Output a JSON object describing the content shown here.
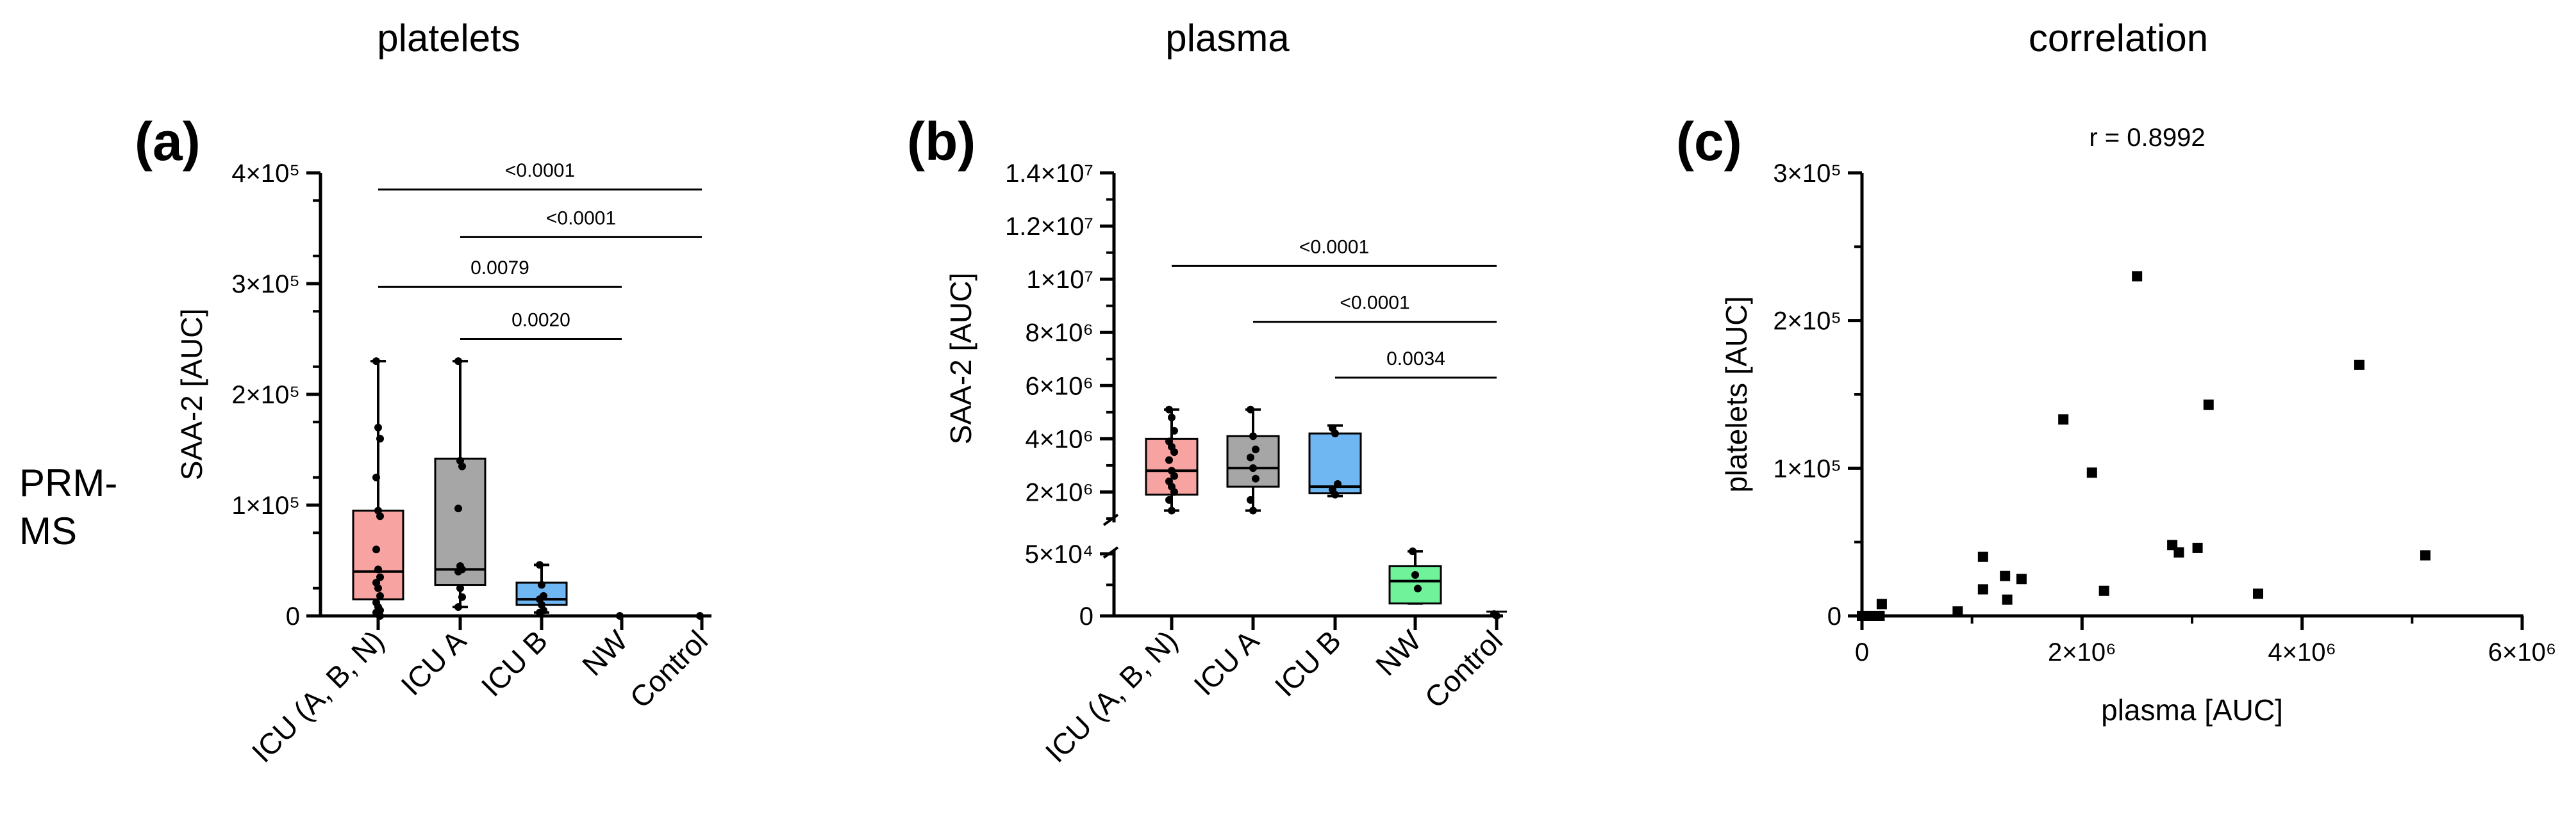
{
  "row_label": [
    "PRM-",
    "MS"
  ],
  "panels": [
    {
      "letter": "(a)",
      "title": "platelets"
    },
    {
      "letter": "(b)",
      "title": "plasma"
    },
    {
      "letter": "(c)",
      "title": "correlation"
    }
  ],
  "chart_data": [
    {
      "type": "box",
      "title": "platelets",
      "panel": "(a)",
      "xlabel": "",
      "ylabel": "SAA-2 [AUC]",
      "ylim": [
        0,
        400000
      ],
      "yticks": [
        {
          "value": 0,
          "label": "0"
        },
        {
          "value": 100000,
          "label": "1×10⁵"
        },
        {
          "value": 200000,
          "label": "2×10⁵"
        },
        {
          "value": 300000,
          "label": "3×10⁵"
        },
        {
          "value": 400000,
          "label": "4×10⁵"
        }
      ],
      "categories": [
        "ICU (A, B, N)",
        "ICU A",
        "ICU B",
        "NW",
        "Control"
      ],
      "boxes": [
        {
          "category": "ICU (A, B, N)",
          "min": 0,
          "q1": 15000,
          "median": 40000,
          "q3": 95000,
          "max": 230000,
          "color": "#f7a3a1",
          "points": [
            230000,
            170000,
            160000,
            125000,
            95000,
            90000,
            60000,
            42000,
            35000,
            30000,
            25000,
            18000,
            12000,
            8000,
            5000,
            3000,
            1500,
            0
          ]
        },
        {
          "category": "ICU A",
          "min": 8000,
          "q1": 28000,
          "median": 42000,
          "q3": 142000,
          "max": 230000,
          "color": "#a6a6a6",
          "points": [
            230000,
            140000,
            135000,
            97000,
            45000,
            42000,
            40000,
            25000,
            17000,
            8000
          ]
        },
        {
          "category": "ICU B",
          "min": 3000,
          "q1": 10000,
          "median": 15000,
          "q3": 30000,
          "max": 46000,
          "color": "#6fb7f2",
          "points": [
            46000,
            28000,
            18000,
            15000,
            10000,
            5000,
            3000
          ]
        },
        {
          "category": "NW",
          "min": 0,
          "q1": 0,
          "median": 0,
          "q3": 0,
          "max": 0,
          "color": "#000000",
          "points": [
            0
          ]
        },
        {
          "category": "Control",
          "min": 0,
          "q1": 0,
          "median": 0,
          "q3": 0,
          "max": 0,
          "color": "#000000",
          "points": [
            0
          ]
        }
      ],
      "annotations": [
        {
          "from": "ICU (A, B, N)",
          "to": "Control",
          "y": 385000,
          "label": "<0.0001"
        },
        {
          "from": "ICU A",
          "to": "Control",
          "y": 342000,
          "label": "<0.0001"
        },
        {
          "from": "ICU (A, B, N)",
          "to": "NW",
          "y": 297000,
          "label": "0.0079"
        },
        {
          "from": "ICU A",
          "to": "NW",
          "y": 250000,
          "label": "0.0020"
        }
      ]
    },
    {
      "type": "box",
      "title": "plasma",
      "panel": "(b)",
      "xlabel": "",
      "ylabel": "SAA-2 [AUC]",
      "y_broken": true,
      "ylim_lower": [
        0,
        50000
      ],
      "ylim_upper": [
        1000000,
        14000000
      ],
      "yticks": [
        {
          "value": 0,
          "label": "0"
        },
        {
          "value": 50000,
          "label": "5×10⁴"
        },
        {
          "value": 2000000,
          "label": "2×10⁶"
        },
        {
          "value": 4000000,
          "label": "4×10⁶"
        },
        {
          "value": 6000000,
          "label": "6×10⁶"
        },
        {
          "value": 8000000,
          "label": "8×10⁶"
        },
        {
          "value": 10000000,
          "label": "1×10⁷"
        },
        {
          "value": 12000000,
          "label": "1.2×10⁷"
        },
        {
          "value": 14000000,
          "label": "1.4×10⁷"
        }
      ],
      "categories": [
        "ICU (A, B, N)",
        "ICU A",
        "ICU B",
        "NW",
        "Control"
      ],
      "boxes": [
        {
          "category": "ICU (A, B, N)",
          "min": 1300000,
          "q1": 1900000,
          "median": 2800000,
          "q3": 4000000,
          "max": 5100000,
          "color": "#f7a3a1",
          "points": [
            5100000,
            4800000,
            4300000,
            3900000,
            3700000,
            3500000,
            3200000,
            2800000,
            2600000,
            2400000,
            2200000,
            2000000,
            1700000,
            1300000
          ]
        },
        {
          "category": "ICU A",
          "min": 1300000,
          "q1": 2200000,
          "median": 2900000,
          "q3": 4100000,
          "max": 5100000,
          "color": "#a6a6a6",
          "points": [
            5100000,
            4100000,
            3600000,
            3300000,
            2900000,
            2500000,
            1700000,
            1300000
          ]
        },
        {
          "category": "ICU B",
          "min": 1850000,
          "q1": 1950000,
          "median": 2200000,
          "q3": 4200000,
          "max": 4500000,
          "color": "#6fb7f2",
          "points": [
            4400000,
            4200000,
            2300000,
            2100000,
            1900000
          ]
        },
        {
          "category": "NW",
          "min": 10000,
          "q1": 10000,
          "median": 28000,
          "q3": 40000,
          "max": 52000,
          "color": "#6ff29a",
          "points": [
            52000,
            33000,
            22000
          ]
        },
        {
          "category": "Control",
          "min": 0,
          "q1": 0,
          "median": 1500,
          "q3": 2500,
          "max": 3500,
          "color": "#000000",
          "points": [
            1500,
            0
          ]
        }
      ],
      "annotations": [
        {
          "from": "ICU (A, B, N)",
          "to": "Control",
          "y": 10500000,
          "label": "<0.0001"
        },
        {
          "from": "ICU A",
          "to": "Control",
          "y": 8400000,
          "label": "<0.0001"
        },
        {
          "from": "ICU B",
          "to": "Control",
          "y": 6300000,
          "label": "0.0034"
        }
      ]
    },
    {
      "type": "scatter",
      "title": "correlation",
      "panel": "(c)",
      "xlabel": "plasma [AUC]",
      "ylabel": "platelets [AUC]",
      "annotation": "r = 0.8992",
      "xlim": [
        0,
        6000000
      ],
      "ylim": [
        0,
        300000
      ],
      "xticks": [
        {
          "value": 0,
          "label": "0"
        },
        {
          "value": 2000000,
          "label": "2×10⁶"
        },
        {
          "value": 4000000,
          "label": "4×10⁶"
        },
        {
          "value": 6000000,
          "label": "6×10⁶"
        }
      ],
      "yticks": [
        {
          "value": 0,
          "label": "0"
        },
        {
          "value": 100000,
          "label": "1×10⁵"
        },
        {
          "value": 200000,
          "label": "2×10⁵"
        },
        {
          "value": 300000,
          "label": "3×10⁵"
        }
      ],
      "points": [
        [
          0,
          0
        ],
        [
          50000,
          0
        ],
        [
          100000,
          0
        ],
        [
          160000,
          0
        ],
        [
          180000,
          8000
        ],
        [
          870000,
          3000
        ],
        [
          1100000,
          40000
        ],
        [
          1100000,
          18000
        ],
        [
          1300000,
          27000
        ],
        [
          1320000,
          11000
        ],
        [
          1450000,
          25000
        ],
        [
          1830000,
          133000
        ],
        [
          2090000,
          97000
        ],
        [
          2200000,
          17000
        ],
        [
          2500000,
          230000
        ],
        [
          2820000,
          48000
        ],
        [
          2880000,
          43000
        ],
        [
          3050000,
          46000
        ],
        [
          3150000,
          143000
        ],
        [
          3600000,
          15000
        ],
        [
          4520000,
          170000
        ],
        [
          5120000,
          41000
        ]
      ]
    }
  ]
}
